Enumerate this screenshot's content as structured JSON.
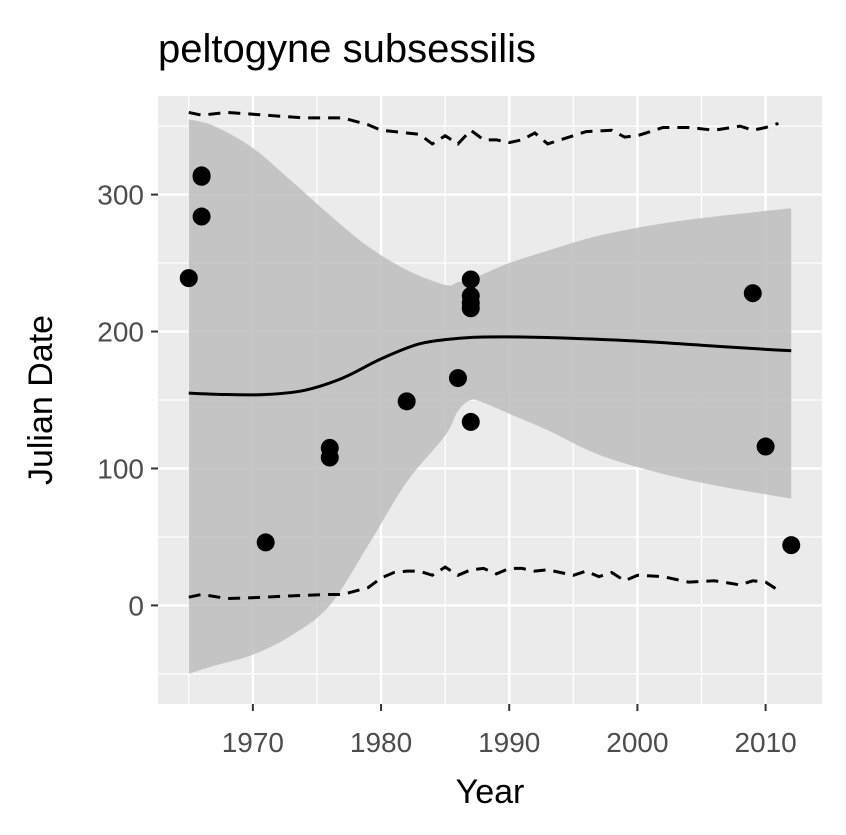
{
  "chart_data": {
    "type": "scatter",
    "title": "peltogyne subsessilis",
    "xlabel": "Year",
    "ylabel": "Julian Date",
    "xlim": [
      1962.6,
      2014.4
    ],
    "ylim": [
      -72,
      372
    ],
    "x_ticks": [
      1970,
      1980,
      1990,
      2000,
      2010
    ],
    "x_tick_labels": [
      "1970",
      "1980",
      "1990",
      "2000",
      "2010"
    ],
    "y_ticks": [
      0,
      100,
      200,
      300
    ],
    "y_tick_labels": [
      "0",
      "100",
      "200",
      "300"
    ],
    "grid": true,
    "legend": "none",
    "colors": {
      "panel": "#EBEBEB",
      "grid": "#FFFFFF",
      "ribbon": "#BDBDBD",
      "points": "#000000",
      "lines": "#000000",
      "tick_text": "#4D4D4D"
    },
    "points": [
      {
        "x": 1965,
        "y": 239
      },
      {
        "x": 1966,
        "y": 313
      },
      {
        "x": 1966,
        "y": 314
      },
      {
        "x": 1966,
        "y": 284
      },
      {
        "x": 1971,
        "y": 46
      },
      {
        "x": 1976,
        "y": 115
      },
      {
        "x": 1976,
        "y": 108
      },
      {
        "x": 1982,
        "y": 149
      },
      {
        "x": 1986,
        "y": 166
      },
      {
        "x": 1987,
        "y": 238
      },
      {
        "x": 1987,
        "y": 226
      },
      {
        "x": 1987,
        "y": 221
      },
      {
        "x": 1987,
        "y": 217
      },
      {
        "x": 1987,
        "y": 134
      },
      {
        "x": 2009,
        "y": 228
      },
      {
        "x": 2010,
        "y": 116
      },
      {
        "x": 2012,
        "y": 44
      }
    ],
    "fit_line": {
      "x": [
        1965,
        1968,
        1971,
        1974,
        1977,
        1980,
        1983,
        1986,
        1988,
        1991,
        1995,
        2000,
        2005,
        2010,
        2012
      ],
      "y": [
        155,
        154,
        154,
        157,
        166,
        180,
        191,
        195,
        196,
        196,
        195,
        193,
        190,
        187,
        186
      ]
    },
    "confidence_band": {
      "x": [
        1965,
        1967,
        1970,
        1973,
        1976,
        1979,
        1982,
        1985,
        1986,
        1987,
        1988,
        1990,
        1993,
        1997,
        2002,
        2007,
        2012
      ],
      "upper": [
        355,
        350,
        334,
        310,
        285,
        262,
        245,
        234,
        236,
        238,
        242,
        250,
        259,
        270,
        279,
        285,
        290
      ],
      "lower": [
        -50,
        -44,
        -36,
        -22,
        0,
        44,
        90,
        124,
        142,
        150,
        148,
        140,
        128,
        110,
        96,
        86,
        78
      ]
    },
    "upper_dashed": {
      "x": [
        1965,
        1966,
        1968,
        1971,
        1974,
        1976,
        1977,
        1979,
        1980,
        1982,
        1983,
        1984,
        1985,
        1986,
        1987,
        1988,
        1989,
        1990,
        1991,
        1992,
        1993,
        1994,
        1996,
        1998,
        1999,
        2000,
        2002,
        2004,
        2006,
        2008,
        2009,
        2010,
        2011
      ],
      "y": [
        360,
        358,
        360,
        358,
        356,
        356,
        356,
        351,
        347,
        345,
        344,
        337,
        343,
        337,
        347,
        340,
        340,
        338,
        340,
        345,
        337,
        340,
        346,
        347,
        342,
        343,
        349,
        349,
        347,
        350,
        347,
        349,
        352
      ]
    },
    "lower_dashed": {
      "x": [
        1965,
        1966,
        1968,
        1971,
        1973,
        1976,
        1977,
        1979,
        1980,
        1981,
        1982,
        1983,
        1984,
        1985,
        1986,
        1987,
        1988,
        1989,
        1990,
        1991,
        1992,
        1993,
        1995,
        1996,
        1997,
        1998,
        1999,
        2000,
        2002,
        2004,
        2006,
        2008,
        2009,
        2010,
        2011
      ],
      "y": [
        6,
        8,
        5,
        6,
        7,
        8,
        8,
        13,
        20,
        24,
        25,
        25,
        22,
        28,
        22,
        26,
        27,
        23,
        27,
        27,
        25,
        26,
        22,
        25,
        21,
        24,
        18,
        22,
        21,
        17,
        18,
        15,
        18,
        17,
        11
      ]
    }
  }
}
